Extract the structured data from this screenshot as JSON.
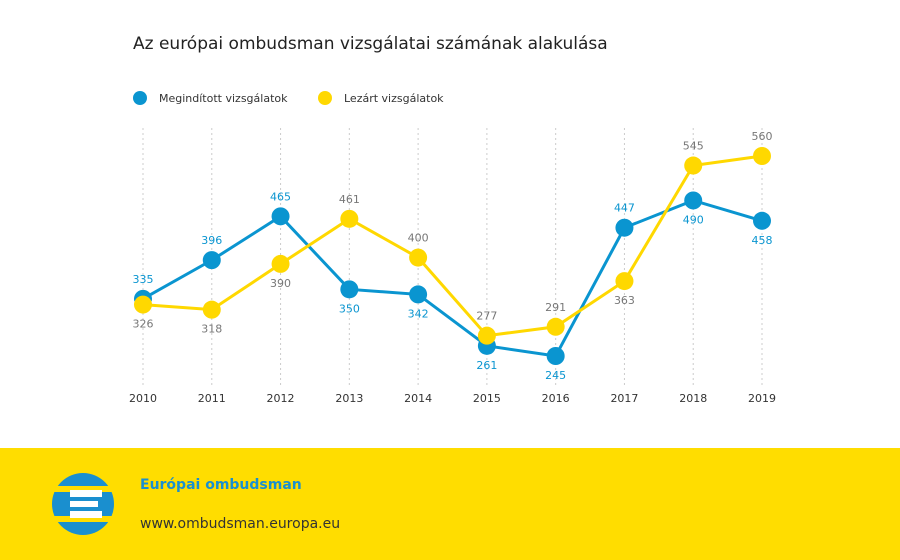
{
  "chart_data": {
    "type": "line",
    "title": "Az európai ombudsman vizsgálatai számának alakulása",
    "categories": [
      "2010",
      "2011",
      "2012",
      "2013",
      "2014",
      "2015",
      "2016",
      "2017",
      "2018",
      "2019"
    ],
    "series": [
      {
        "name": "Megindított vizsgálatok",
        "color": "#0a95d0",
        "label_color": "#0a95d0",
        "values": [
          335,
          396,
          465,
          350,
          342,
          261,
          245,
          447,
          490,
          458
        ]
      },
      {
        "name": "Lezárt vizsgálatok",
        "color": "#ffd800",
        "label_color": "#777777",
        "values": [
          326,
          318,
          390,
          461,
          400,
          277,
          291,
          363,
          545,
          560
        ]
      }
    ],
    "grid": true,
    "legend": "top-left"
  },
  "footer": {
    "name": "Európai ombudsman",
    "url": "www.ombudsman.europa.eu"
  }
}
